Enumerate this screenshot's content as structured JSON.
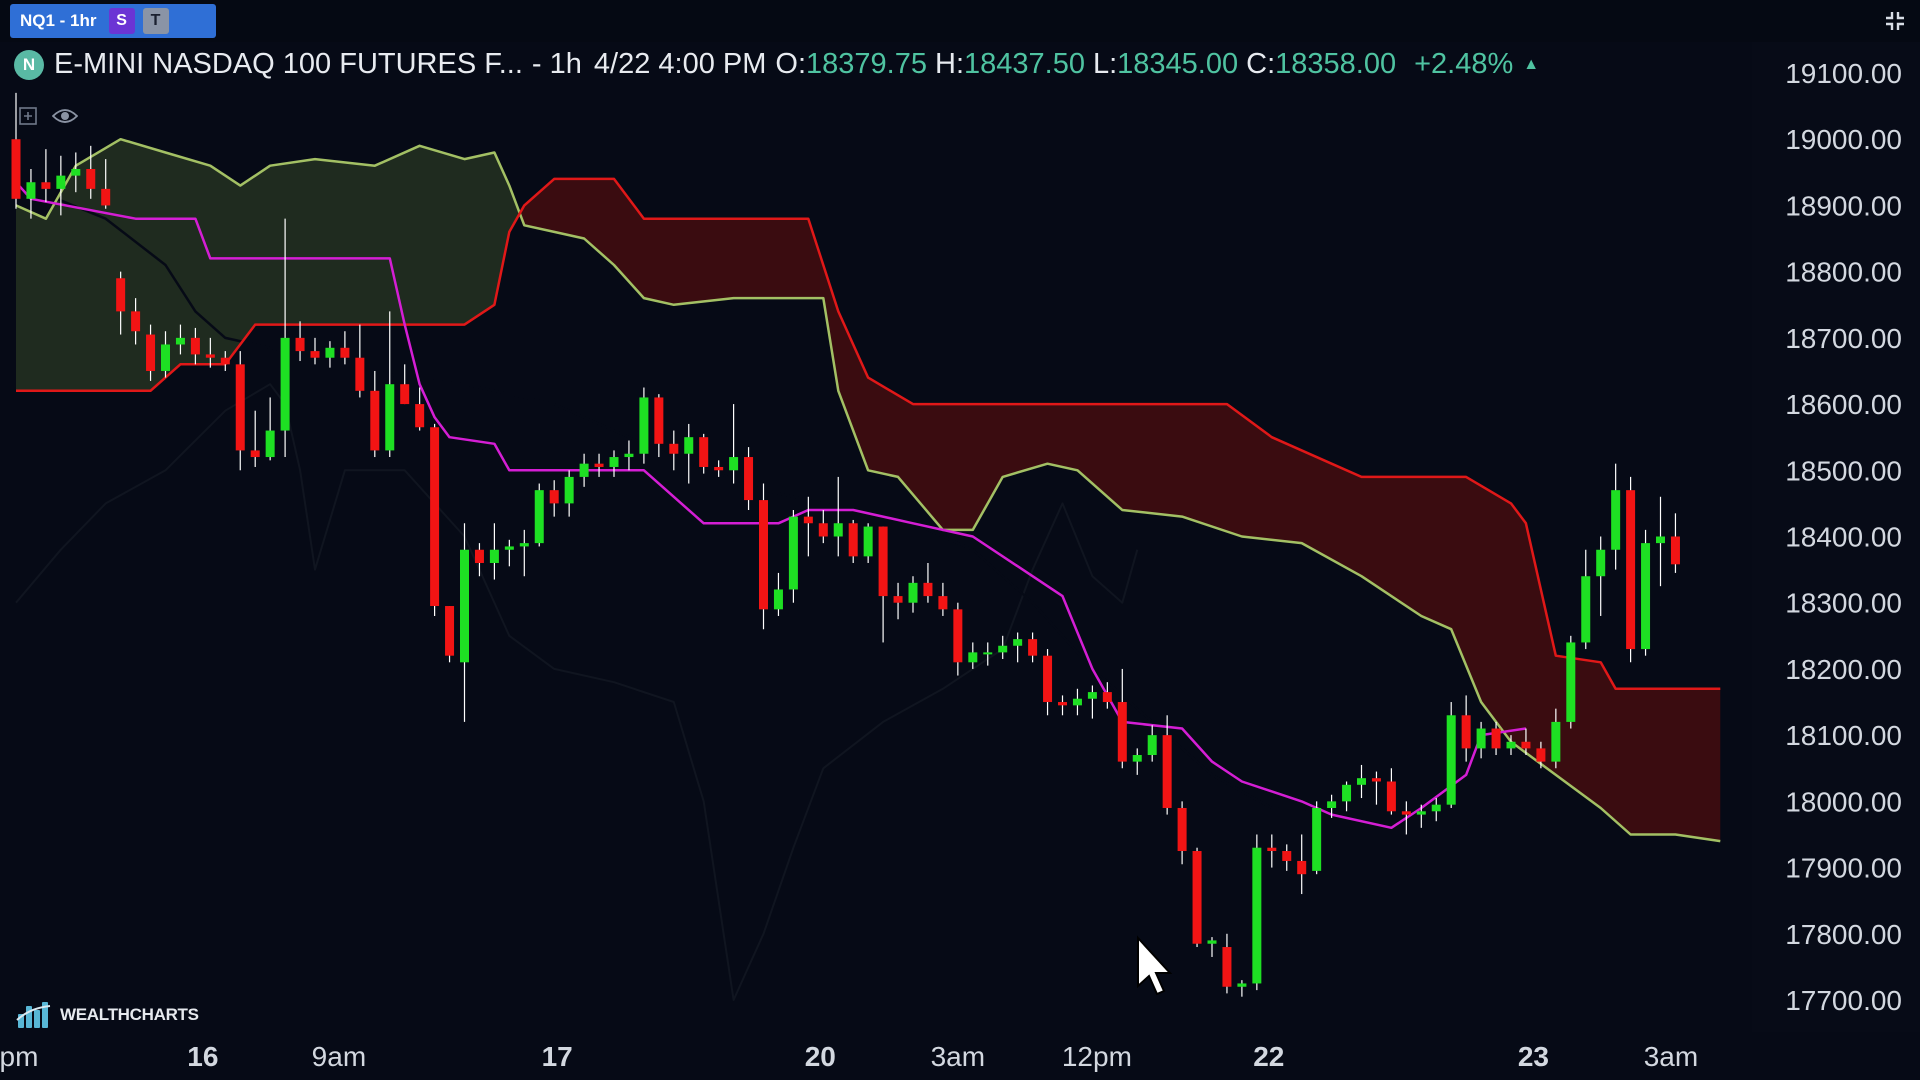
{
  "tab": {
    "symbol": "NQ1 - 1hr",
    "badge_s": "S",
    "badge_t": "T"
  },
  "header": {
    "logo": "N",
    "name": "E-MINI NASDAQ 100 FUTURES F...",
    "interval": "- 1h",
    "datetime": "4/22 4:00 PM",
    "open_label": "O:",
    "open": "18379.75",
    "high_label": "H:",
    "high": "18437.50",
    "low_label": "L:",
    "low": "18345.00",
    "close_label": "C:",
    "close": "18358.00",
    "change": "+2.48%",
    "change_icon": "triangle-up-icon"
  },
  "toolbar_icons": [
    "plus-square-icon",
    "eye-icon"
  ],
  "watermark": "WEALTHCHARTS",
  "colors": {
    "background": "#060a16",
    "up": "#1ee023",
    "down": "#f21414",
    "conversion": "#d41ed4",
    "base": "#060a16",
    "lagging": "#101520",
    "span_a": "#a3c064",
    "span_b": "#e01818",
    "cloud_bull": "#1f2b1f",
    "cloud_bear": "#3a0c10",
    "accent_green": "#4fc3a1"
  },
  "chart_data": {
    "type": "candlestick",
    "indicator": "ichimoku",
    "ylim": [
      17650,
      19150
    ],
    "y_ticks": [
      "19100.00",
      "19000.00",
      "18900.00",
      "18800.00",
      "18700.00",
      "18600.00",
      "18500.00",
      "18400.00",
      "18300.00",
      "18200.00",
      "18100.00",
      "18000.00",
      "17900.00",
      "17800.00",
      "17700.00"
    ],
    "x_ticks": [
      {
        "label": "pm",
        "i": 0.2
      },
      {
        "label": "16",
        "i": 12.5
      },
      {
        "label": "9am",
        "i": 21.6
      },
      {
        "label": "17",
        "i": 36.2
      },
      {
        "label": "20",
        "i": 53.8
      },
      {
        "label": "3am",
        "i": 63
      },
      {
        "label": "12pm",
        "i": 72.3
      },
      {
        "label": "22",
        "i": 83.8
      },
      {
        "label": "23",
        "i": 101.5
      },
      {
        "label": "3am",
        "i": 110.7
      }
    ],
    "candles": [
      [
        19000,
        19070,
        18895,
        18910
      ],
      [
        18910,
        18955,
        18880,
        18935
      ],
      [
        18935,
        18985,
        18905,
        18925
      ],
      [
        18925,
        18975,
        18885,
        18945
      ],
      [
        18945,
        18980,
        18920,
        18955
      ],
      [
        18955,
        18990,
        18910,
        18925
      ],
      [
        18925,
        18970,
        18895,
        18900
      ],
      [
        18790,
        18800,
        18705,
        18740
      ],
      [
        18740,
        18760,
        18690,
        18710
      ],
      [
        18705,
        18720,
        18635,
        18650
      ],
      [
        18650,
        18710,
        18640,
        18690
      ],
      [
        18690,
        18720,
        18675,
        18700
      ],
      [
        18700,
        18715,
        18660,
        18675
      ],
      [
        18675,
        18700,
        18655,
        18670
      ],
      [
        18670,
        18680,
        18650,
        18660
      ],
      [
        18660,
        18680,
        18500,
        18530
      ],
      [
        18530,
        18590,
        18505,
        18520
      ],
      [
        18520,
        18610,
        18515,
        18560
      ],
      [
        18560,
        18880,
        18520,
        18700
      ],
      [
        18700,
        18725,
        18665,
        18680
      ],
      [
        18680,
        18700,
        18660,
        18670
      ],
      [
        18670,
        18695,
        18655,
        18685
      ],
      [
        18685,
        18710,
        18660,
        18670
      ],
      [
        18670,
        18720,
        18610,
        18620
      ],
      [
        18620,
        18650,
        18520,
        18530
      ],
      [
        18530,
        18740,
        18520,
        18630
      ],
      [
        18630,
        18660,
        18600,
        18600
      ],
      [
        18600,
        18625,
        18560,
        18565
      ],
      [
        18565,
        18570,
        18280,
        18295
      ],
      [
        18295,
        18295,
        18210,
        18220
      ],
      [
        18210,
        18420,
        18120,
        18380
      ],
      [
        18380,
        18390,
        18340,
        18360
      ],
      [
        18360,
        18420,
        18335,
        18380
      ],
      [
        18380,
        18395,
        18355,
        18385
      ],
      [
        18385,
        18410,
        18340,
        18390
      ],
      [
        18390,
        18480,
        18385,
        18470
      ],
      [
        18470,
        18485,
        18430,
        18450
      ],
      [
        18450,
        18500,
        18430,
        18490
      ],
      [
        18490,
        18525,
        18475,
        18510
      ],
      [
        18510,
        18525,
        18490,
        18505
      ],
      [
        18505,
        18530,
        18490,
        18520
      ],
      [
        18520,
        18545,
        18500,
        18525
      ],
      [
        18525,
        18625,
        18510,
        18610
      ],
      [
        18610,
        18615,
        18520,
        18540
      ],
      [
        18540,
        18560,
        18500,
        18525
      ],
      [
        18525,
        18570,
        18480,
        18550
      ],
      [
        18550,
        18555,
        18495,
        18505
      ],
      [
        18505,
        18515,
        18490,
        18500
      ],
      [
        18500,
        18600,
        18480,
        18520
      ],
      [
        18520,
        18535,
        18440,
        18455
      ],
      [
        18455,
        18480,
        18260,
        18290
      ],
      [
        18290,
        18345,
        18280,
        18320
      ],
      [
        18320,
        18440,
        18300,
        18430
      ],
      [
        18430,
        18460,
        18370,
        18420
      ],
      [
        18420,
        18440,
        18390,
        18400
      ],
      [
        18400,
        18490,
        18370,
        18420
      ],
      [
        18420,
        18425,
        18360,
        18370
      ],
      [
        18370,
        18420,
        18360,
        18415
      ],
      [
        18415,
        18415,
        18240,
        18310
      ],
      [
        18310,
        18330,
        18275,
        18300
      ],
      [
        18300,
        18340,
        18285,
        18330
      ],
      [
        18330,
        18360,
        18300,
        18310
      ],
      [
        18310,
        18330,
        18280,
        18290
      ],
      [
        18290,
        18300,
        18190,
        18210
      ],
      [
        18210,
        18240,
        18200,
        18225
      ],
      [
        18225,
        18240,
        18205,
        18225
      ],
      [
        18225,
        18250,
        18215,
        18235
      ],
      [
        18235,
        18255,
        18210,
        18245
      ],
      [
        18245,
        18255,
        18210,
        18220
      ],
      [
        18220,
        18230,
        18130,
        18150
      ],
      [
        18150,
        18160,
        18130,
        18145
      ],
      [
        18145,
        18170,
        18130,
        18155
      ],
      [
        18155,
        18175,
        18125,
        18165
      ],
      [
        18165,
        18180,
        18140,
        18150
      ],
      [
        18150,
        18200,
        18050,
        18060
      ],
      [
        18060,
        18080,
        18040,
        18070
      ],
      [
        18070,
        18115,
        18060,
        18100
      ],
      [
        18100,
        18130,
        17980,
        17990
      ],
      [
        17990,
        18000,
        17905,
        17925
      ],
      [
        17925,
        17930,
        17780,
        17785
      ],
      [
        17785,
        17795,
        17765,
        17790
      ],
      [
        17780,
        17800,
        17710,
        17720
      ],
      [
        17720,
        17730,
        17705,
        17725
      ],
      [
        17725,
        17950,
        17715,
        17930
      ],
      [
        17930,
        17950,
        17900,
        17925
      ],
      [
        17925,
        17935,
        17895,
        17910
      ],
      [
        17910,
        17950,
        17860,
        17890
      ],
      [
        17895,
        18000,
        17890,
        17990
      ],
      [
        17990,
        18010,
        17975,
        18000
      ],
      [
        18000,
        18030,
        17985,
        18025
      ],
      [
        18025,
        18055,
        18005,
        18035
      ],
      [
        18035,
        18045,
        17995,
        18030
      ],
      [
        18030,
        18050,
        17980,
        17985
      ],
      [
        17985,
        18000,
        17950,
        17980
      ],
      [
        17980,
        17995,
        17960,
        17985
      ],
      [
        17985,
        18005,
        17970,
        17995
      ],
      [
        17995,
        18150,
        17990,
        18130
      ],
      [
        18130,
        18160,
        18060,
        18080
      ],
      [
        18080,
        18120,
        18065,
        18110
      ],
      [
        18110,
        18120,
        18070,
        18080
      ],
      [
        18080,
        18100,
        18070,
        18090
      ],
      [
        18090,
        18110,
        18070,
        18080
      ],
      [
        18080,
        18090,
        18050,
        18060
      ],
      [
        18060,
        18140,
        18050,
        18120
      ],
      [
        18120,
        18250,
        18110,
        18240
      ],
      [
        18240,
        18380,
        18230,
        18340
      ],
      [
        18340,
        18400,
        18280,
        18380
      ],
      [
        18380,
        18510,
        18350,
        18470
      ],
      [
        18470,
        18490,
        18210,
        18230
      ],
      [
        18230,
        18410,
        18220,
        18390
      ],
      [
        18390,
        18460,
        18325,
        18400
      ],
      [
        18400,
        18435,
        18345,
        18358
      ]
    ],
    "conversion_line": [
      [
        0,
        18935
      ],
      [
        1,
        18910
      ],
      [
        8,
        18880
      ],
      [
        12,
        18880
      ],
      [
        13,
        18820
      ],
      [
        25,
        18820
      ],
      [
        26,
        18720
      ],
      [
        27,
        18630
      ],
      [
        28,
        18580
      ],
      [
        29,
        18550
      ],
      [
        32,
        18540
      ],
      [
        33,
        18500
      ],
      [
        42,
        18500
      ],
      [
        44,
        18460
      ],
      [
        46,
        18420
      ],
      [
        51,
        18420
      ],
      [
        53,
        18440
      ],
      [
        54,
        18440
      ],
      [
        56,
        18440
      ],
      [
        60,
        18420
      ],
      [
        64,
        18400
      ],
      [
        68,
        18340
      ],
      [
        70,
        18310
      ],
      [
        72,
        18200
      ],
      [
        74,
        18120
      ],
      [
        78,
        18110
      ],
      [
        80,
        18060
      ],
      [
        82,
        18030
      ],
      [
        86,
        18000
      ],
      [
        88,
        17980
      ],
      [
        92,
        17960
      ],
      [
        94,
        17990
      ],
      [
        97,
        18040
      ],
      [
        98,
        18100
      ],
      [
        101,
        18110
      ]
    ],
    "base_line": [
      [
        0,
        18935
      ],
      [
        6,
        18880
      ],
      [
        10,
        18810
      ],
      [
        12,
        18740
      ],
      [
        14,
        18700
      ],
      [
        20,
        18670
      ],
      [
        26,
        18640
      ],
      [
        30,
        18630
      ],
      [
        36,
        18600
      ],
      [
        44,
        18520
      ],
      [
        50,
        18470
      ],
      [
        54,
        18450
      ],
      [
        60,
        18420
      ],
      [
        64,
        18380
      ],
      [
        68,
        18300
      ],
      [
        72,
        18200
      ],
      [
        76,
        18120
      ],
      [
        80,
        18040
      ],
      [
        84,
        17990
      ],
      [
        88,
        17980
      ],
      [
        92,
        17990
      ]
    ],
    "lagging_span": [
      [
        0,
        18300
      ],
      [
        3,
        18380
      ],
      [
        6,
        18450
      ],
      [
        10,
        18500
      ],
      [
        14,
        18590
      ],
      [
        17,
        18630
      ],
      [
        18,
        18600
      ],
      [
        19,
        18500
      ],
      [
        20,
        18350
      ],
      [
        22,
        18500
      ],
      [
        26,
        18500
      ],
      [
        30,
        18400
      ],
      [
        33,
        18250
      ],
      [
        36,
        18200
      ],
      [
        40,
        18180
      ],
      [
        44,
        18150
      ],
      [
        46,
        18000
      ],
      [
        48,
        17700
      ],
      [
        49,
        17750
      ],
      [
        50,
        17800
      ],
      [
        52,
        17930
      ],
      [
        54,
        18050
      ],
      [
        58,
        18120
      ],
      [
        62,
        18170
      ],
      [
        66,
        18230
      ],
      [
        68,
        18350
      ],
      [
        70,
        18450
      ],
      [
        72,
        18340
      ],
      [
        74,
        18300
      ],
      [
        75,
        18380
      ]
    ],
    "span_a": [
      [
        0,
        18900
      ],
      [
        2,
        18880
      ],
      [
        4,
        18960
      ],
      [
        7,
        19000
      ],
      [
        10,
        18980
      ],
      [
        13,
        18960
      ],
      [
        15,
        18930
      ],
      [
        17,
        18960
      ],
      [
        20,
        18970
      ],
      [
        24,
        18960
      ],
      [
        27,
        18990
      ],
      [
        30,
        18970
      ],
      [
        32,
        18980
      ],
      [
        33,
        18930
      ],
      [
        34,
        18870
      ],
      [
        36,
        18860
      ],
      [
        38,
        18850
      ],
      [
        40,
        18810
      ],
      [
        42,
        18760
      ],
      [
        44,
        18750
      ],
      [
        48,
        18760
      ],
      [
        54,
        18760
      ],
      [
        55,
        18620
      ],
      [
        57,
        18500
      ],
      [
        59,
        18490
      ],
      [
        62,
        18410
      ],
      [
        64,
        18410
      ],
      [
        66,
        18490
      ],
      [
        69,
        18510
      ],
      [
        71,
        18500
      ],
      [
        74,
        18440
      ],
      [
        78,
        18430
      ],
      [
        82,
        18400
      ],
      [
        86,
        18390
      ],
      [
        90,
        18340
      ],
      [
        94,
        18280
      ],
      [
        96,
        18260
      ],
      [
        98,
        18150
      ],
      [
        100,
        18090
      ],
      [
        103,
        18040
      ],
      [
        106,
        17990
      ],
      [
        108,
        17950
      ],
      [
        111,
        17950
      ],
      [
        114,
        17940
      ]
    ],
    "span_b": [
      [
        0,
        18620
      ],
      [
        9,
        18620
      ],
      [
        11,
        18660
      ],
      [
        14,
        18660
      ],
      [
        16,
        18720
      ],
      [
        30,
        18720
      ],
      [
        32,
        18750
      ],
      [
        33,
        18860
      ],
      [
        34,
        18900
      ],
      [
        36,
        18940
      ],
      [
        40,
        18940
      ],
      [
        42,
        18880
      ],
      [
        53,
        18880
      ],
      [
        55,
        18740
      ],
      [
        57,
        18640
      ],
      [
        60,
        18600
      ],
      [
        81,
        18600
      ],
      [
        84,
        18550
      ],
      [
        88,
        18510
      ],
      [
        90,
        18490
      ],
      [
        97,
        18490
      ],
      [
        100,
        18450
      ],
      [
        101,
        18420
      ],
      [
        103,
        18220
      ],
      [
        106,
        18210
      ],
      [
        107,
        18170
      ],
      [
        114,
        18170
      ]
    ]
  }
}
